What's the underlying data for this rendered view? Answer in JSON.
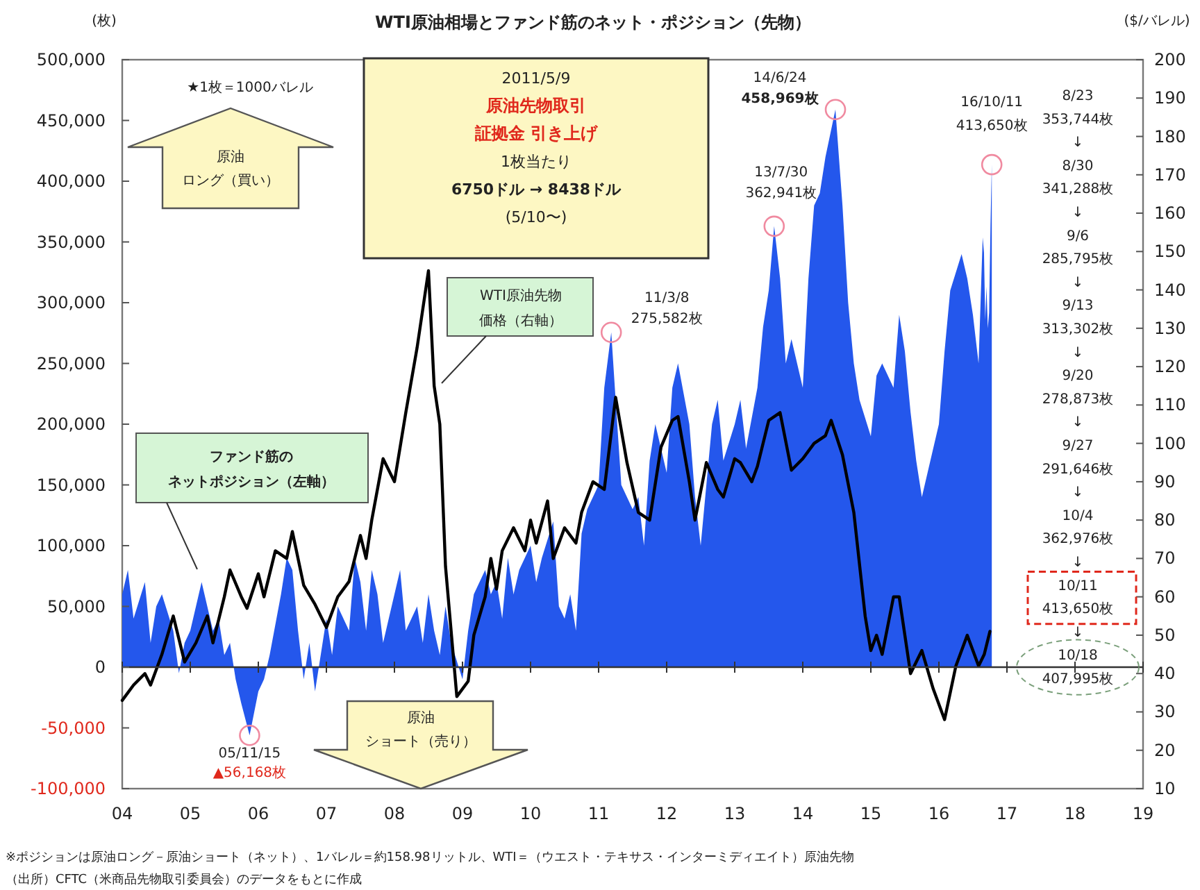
{
  "chart_data": {
    "type": "area",
    "title": "WTI原油相場とファンド筋のネット・ポジション（先物）",
    "ylabel": "(枚)",
    "y2label": "($/バレル)",
    "xlim": [
      "2004",
      "2019"
    ],
    "xticks": [
      {
        "value": "2004",
        "label": "04"
      },
      {
        "value": "2005",
        "label": "05"
      },
      {
        "value": "2006",
        "label": "06"
      },
      {
        "value": "2007",
        "label": "07"
      },
      {
        "value": "2008",
        "label": "08"
      },
      {
        "value": "2009",
        "label": "09"
      },
      {
        "value": "2010",
        "label": "10"
      },
      {
        "value": "2011",
        "label": "11"
      },
      {
        "value": "2012",
        "label": "12"
      },
      {
        "value": "2013",
        "label": "13"
      },
      {
        "value": "2014",
        "label": "14"
      },
      {
        "value": "2015",
        "label": "15"
      },
      {
        "value": "2016",
        "label": "16"
      },
      {
        "value": "2017",
        "label": "17"
      },
      {
        "value": "2018",
        "label": "18"
      },
      {
        "value": "2019",
        "label": "19"
      }
    ],
    "ylim": [
      -100000,
      500000
    ],
    "yticks": [
      {
        "value": -100000,
        "label": "-100,000"
      },
      {
        "value": -50000,
        "label": "-50,000"
      },
      0,
      {
        "value": 50000,
        "label": "50,000"
      },
      {
        "value": 100000,
        "label": "100,000"
      },
      {
        "value": 150000,
        "label": "150,000"
      },
      {
        "value": 200000,
        "label": "200,000"
      },
      {
        "value": 250000,
        "label": "250,000"
      },
      {
        "value": 300000,
        "label": "300,000"
      },
      {
        "value": 350000,
        "label": "350,000"
      },
      {
        "value": 400000,
        "label": "400,000"
      },
      {
        "value": 450000,
        "label": "450,000"
      },
      {
        "value": 500000,
        "label": "500,000"
      }
    ],
    "y2lim": [
      10,
      200
    ],
    "y2ticks": [
      10,
      20,
      30,
      40,
      50,
      60,
      70,
      80,
      90,
      100,
      110,
      120,
      130,
      140,
      150,
      160,
      170,
      180,
      190,
      200
    ],
    "series": [
      {
        "color": "#2457ec",
        "x": [
          "2004-01",
          "2004-02",
          "2004-03",
          "2004-05",
          "2004-06",
          "2004-07",
          "2004-08",
          "2004-10",
          "2004-11",
          "2004-12",
          "2005-01",
          "2005-02",
          "2005-03",
          "2005-05",
          "2005-06",
          "2005-07",
          "2005-08",
          "2005-09",
          "2005-10",
          "2005-11-15",
          "2006-01",
          "2006-02",
          "2006-03",
          "2006-05",
          "2006-06",
          "2006-07",
          "2006-08",
          "2006-09",
          "2006-10",
          "2006-11",
          "2007-01",
          "2007-02",
          "2007-03",
          "2007-05",
          "2007-06",
          "2007-07",
          "2007-08",
          "2007-09",
          "2007-10",
          "2007-11",
          "2008-01",
          "2008-02",
          "2008-03",
          "2008-05",
          "2008-06",
          "2008-07",
          "2008-08",
          "2008-09",
          "2008-10",
          "2008-11",
          "2009-01",
          "2009-02",
          "2009-03",
          "2009-05",
          "2009-06",
          "2009-07",
          "2009-08",
          "2009-09",
          "2009-10",
          "2009-11",
          "2010-01",
          "2010-02",
          "2010-03",
          "2010-05",
          "2010-06",
          "2010-07",
          "2010-08",
          "2010-09",
          "2010-10",
          "2010-11",
          "2011-01",
          "2011-02",
          "2011-03-08",
          "2011-04",
          "2011-05",
          "2011-07",
          "2011-08",
          "2011-09",
          "2011-10",
          "2011-11",
          "2012-01",
          "2012-02",
          "2012-03",
          "2012-05",
          "2012-06",
          "2012-07",
          "2012-08",
          "2012-09",
          "2012-10",
          "2012-11",
          "2013-01",
          "2013-02",
          "2013-03",
          "2013-05",
          "2013-06",
          "2013-07",
          "2013-07-30",
          "2013-09",
          "2013-10",
          "2013-11",
          "2014-01",
          "2014-02",
          "2014-03",
          "2014-04",
          "2014-05",
          "2014-06-24",
          "2014-08",
          "2014-09",
          "2014-10",
          "2014-11",
          "2015-01",
          "2015-02",
          "2015-03",
          "2015-05",
          "2015-06",
          "2015-07",
          "2015-08",
          "2015-09",
          "2015-10",
          "2015-11",
          "2016-01",
          "2016-02",
          "2016-03",
          "2016-05",
          "2016-06",
          "2016-07",
          "2016-08",
          "2016-08-23",
          "2016-08-30",
          "2016-09-06",
          "2016-09-13",
          "2016-09-20",
          "2016-09-27",
          "2016-10-04",
          "2016-10-11"
        ],
        "values": [
          60000,
          80000,
          40000,
          70000,
          20000,
          50000,
          60000,
          30000,
          -5000,
          20000,
          30000,
          50000,
          70000,
          30000,
          40000,
          10000,
          20000,
          -10000,
          -30000,
          -56168,
          -20000,
          -10000,
          10000,
          60000,
          90000,
          80000,
          30000,
          -10000,
          20000,
          -20000,
          40000,
          10000,
          50000,
          30000,
          90000,
          70000,
          30000,
          80000,
          60000,
          20000,
          60000,
          80000,
          30000,
          50000,
          20000,
          60000,
          30000,
          10000,
          50000,
          20000,
          -10000,
          30000,
          60000,
          80000,
          60000,
          70000,
          40000,
          90000,
          60000,
          80000,
          100000,
          70000,
          90000,
          120000,
          50000,
          40000,
          60000,
          30000,
          110000,
          130000,
          150000,
          230000,
          275582,
          220000,
          150000,
          130000,
          140000,
          100000,
          170000,
          200000,
          160000,
          230000,
          250000,
          200000,
          140000,
          100000,
          150000,
          200000,
          220000,
          170000,
          200000,
          220000,
          180000,
          230000,
          280000,
          310000,
          362941,
          320000,
          250000,
          270000,
          230000,
          320000,
          380000,
          390000,
          420000,
          458969,
          380000,
          300000,
          250000,
          220000,
          190000,
          240000,
          250000,
          230000,
          290000,
          260000,
          210000,
          170000,
          140000,
          160000,
          200000,
          260000,
          310000,
          340000,
          320000,
          290000,
          250000,
          353744,
          341288,
          285795,
          313302,
          278873,
          291646,
          362976,
          413650
        ]
      },
      {
        "type": "line",
        "axis": "y2",
        "color": "#000000",
        "x": [
          "2004-01",
          "2004-03",
          "2004-05",
          "2004-06",
          "2004-08",
          "2004-10",
          "2004-12",
          "2005-02",
          "2005-04",
          "2005-05",
          "2005-07",
          "2005-08",
          "2005-10",
          "2005-11",
          "2006-01",
          "2006-02",
          "2006-04",
          "2006-06",
          "2006-07",
          "2006-09",
          "2006-11",
          "2007-01",
          "2007-03",
          "2007-05",
          "2007-07",
          "2007-08",
          "2007-09",
          "2007-11",
          "2008-01",
          "2008-03",
          "2008-05",
          "2008-07",
          "2008-08",
          "2008-09",
          "2008-10",
          "2008-12",
          "2009-02",
          "2009-03",
          "2009-05",
          "2009-06",
          "2009-07",
          "2009-08",
          "2009-10",
          "2009-12",
          "2010-01",
          "2010-02",
          "2010-04",
          "2010-05",
          "2010-07",
          "2010-09",
          "2010-10",
          "2010-12",
          "2011-02",
          "2011-04",
          "2011-06",
          "2011-08",
          "2011-10",
          "2011-12",
          "2012-02",
          "2012-03",
          "2012-05",
          "2012-06",
          "2012-08",
          "2012-10",
          "2012-11",
          "2013-01",
          "2013-02",
          "2013-04",
          "2013-05",
          "2013-07",
          "2013-09",
          "2013-11",
          "2014-01",
          "2014-03",
          "2014-05",
          "2014-06",
          "2014-08",
          "2014-10",
          "2014-12",
          "2015-01",
          "2015-02",
          "2015-03",
          "2015-05",
          "2015-06",
          "2015-08",
          "2015-10",
          "2015-12",
          "2016-02",
          "2016-04",
          "2016-06",
          "2016-08",
          "2016-09",
          "2016-10"
        ],
        "values": [
          33,
          37,
          40,
          37,
          45,
          55,
          43,
          48,
          55,
          48,
          60,
          67,
          60,
          57,
          66,
          60,
          72,
          70,
          77,
          63,
          58,
          52,
          60,
          64,
          76,
          70,
          80,
          96,
          90,
          108,
          125,
          145,
          115,
          105,
          68,
          34,
          38,
          50,
          60,
          70,
          62,
          72,
          78,
          72,
          80,
          74,
          85,
          70,
          78,
          74,
          82,
          90,
          88,
          112,
          95,
          82,
          80,
          99,
          106,
          107,
          90,
          80,
          95,
          88,
          86,
          96,
          95,
          90,
          94,
          106,
          108,
          93,
          96,
          100,
          102,
          106,
          97,
          82,
          55,
          46,
          50,
          45,
          60,
          60,
          40,
          46,
          36,
          28,
          42,
          50,
          42,
          45,
          51
        ]
      }
    ],
    "annotations": [
      "★1枚＝1000バレル",
      "原油ロング（買い）",
      "2011/5/9",
      "原油先物取引",
      "証拠金 引き上げ",
      "1枚当たり",
      "6750ドル → 8438ドル",
      "(5/10〜)",
      "WTI原油先物価格（右軸）",
      "ファンド筋のネットポジション（左軸）",
      {
        "text": "05/11/15\n▲56,168枚",
        "x": "2005-11-15",
        "y": -56168
      },
      {
        "text": "11/3/8\n275,582枚",
        "x": "2011-03-08",
        "y": 275582
      },
      {
        "text": "13/7/30\n362,941枚",
        "x": "2013-07-30",
        "y": 362941
      },
      {
        "text": "14/6/24\n458,969枚",
        "x": "2014-06-24",
        "y": 458969
      },
      {
        "text": "16/10/11\n413,650枚",
        "x": "2016-10-11",
        "y": 413650
      },
      "8/23\n353,744枚\n↓\n8/30\n341,288枚\n↓\n9/6\n285,795枚\n↓\n9/13\n313,302枚\n↓\n9/20\n278,873枚\n↓\n9/27\n291,646枚\n↓\n10/4\n362,976枚\n↓\n10/11\n413,650枚\n↓\n10/18\n407,995枚",
      "原油ショート（売り）",
      "※ポジションは原油ロング－原油ショート（ネット）、1バレル＝約158.98リットル、WTI＝（ウエスト・テキサス・インターミディエイト）原油先物",
      "（出所）CFTC（米商品先物取引委員会）のデータをもとに作成"
    ]
  }
}
